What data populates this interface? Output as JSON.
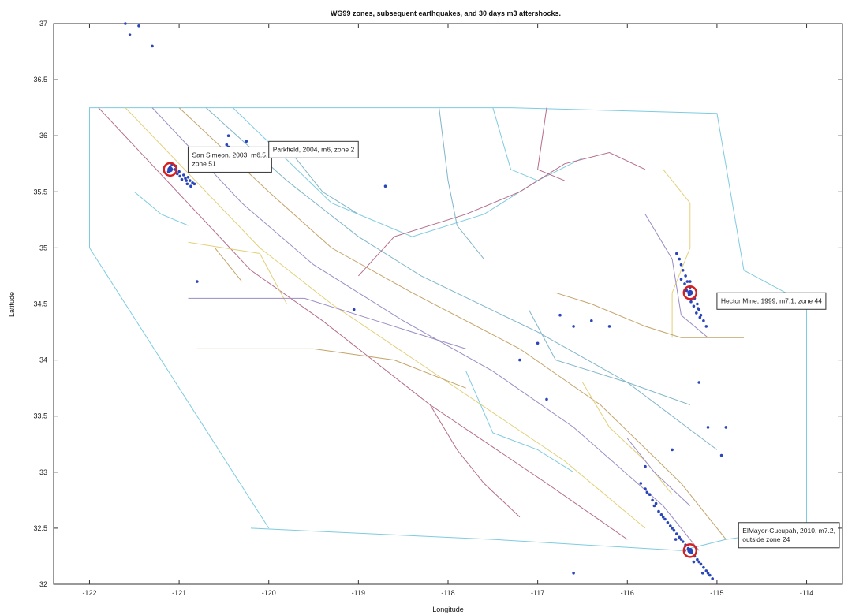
{
  "chart_data": {
    "type": "scatter",
    "title": "WG99 zones, subsequent earthquakes, and 30 days m3 aftershocks.",
    "xlabel": "Longitude",
    "ylabel": "Latitude",
    "xlim": [
      -122.4,
      -113.6
    ],
    "ylim": [
      32,
      37
    ],
    "xticks": [
      -122,
      -121,
      -120,
      -119,
      -118,
      -117,
      -116,
      -115,
      -114
    ],
    "yticks": [
      32,
      32.5,
      33,
      33.5,
      34,
      34.5,
      35,
      35.5,
      36,
      36.5,
      37
    ],
    "xtick_labels": [
      "-122",
      "-121",
      "-120",
      "-119",
      "-118",
      "-117",
      "-116",
      "-115",
      "-114"
    ],
    "ytick_labels": [
      "32",
      "32.5",
      "33",
      "33.5",
      "34",
      "34.5",
      "35",
      "35.5",
      "36",
      "36.5",
      "37"
    ],
    "grid": false,
    "colors": {
      "aftershock": "#2a46b8",
      "mainshock_ring": "#d62020",
      "zone_palette": [
        "#7ecbe0",
        "#b56b8a",
        "#e2d07a",
        "#9a8cc4",
        "#c4a36a",
        "#7fb5c9"
      ]
    },
    "annotations": [
      {
        "text_lines": [
          "San Simeon, 2003, m6.5,",
          "zone 51"
        ],
        "lon": -120.9,
        "lat": 35.9
      },
      {
        "text_lines": [
          "Parkfield, 2004, m6, zone 2"
        ],
        "lon": -120.0,
        "lat": 35.95
      },
      {
        "text_lines": [
          "Hector Mine, 1999, m7.1, zone 44"
        ],
        "lon": -115.0,
        "lat": 34.6
      },
      {
        "text_lines": [
          "ElMayor-Cucupah, 2010, m7.2,",
          "outside zone 24"
        ],
        "lon": -114.5,
        "lat": 32.55
      }
    ],
    "mainshocks": [
      {
        "name": "San Simeon",
        "lon": -121.1,
        "lat": 35.7
      },
      {
        "name": "Parkfield",
        "lon": -120.37,
        "lat": 35.82
      },
      {
        "name": "Hector Mine",
        "lon": -115.3,
        "lat": 34.6
      },
      {
        "name": "ElMayor-Cucupah",
        "lon": -115.3,
        "lat": 32.3
      }
    ],
    "aftershock_clusters": [
      {
        "name": "San Simeon",
        "points": [
          [
            -121.1,
            35.72
          ],
          [
            -121.05,
            35.7
          ],
          [
            -121.0,
            35.68
          ],
          [
            -120.95,
            35.65
          ],
          [
            -120.9,
            35.63
          ],
          [
            -120.88,
            35.6
          ],
          [
            -120.85,
            35.58
          ],
          [
            -121.02,
            35.66
          ],
          [
            -120.97,
            35.61
          ],
          [
            -121.08,
            35.74
          ],
          [
            -120.92,
            35.6
          ],
          [
            -120.87,
            35.55
          ],
          [
            -120.83,
            35.57
          ],
          [
            -121.12,
            35.68
          ],
          [
            -120.99,
            35.64
          ],
          [
            -120.93,
            35.62
          ],
          [
            -121.04,
            35.73
          ],
          [
            -120.91,
            35.57
          ]
        ]
      },
      {
        "name": "Parkfield",
        "points": [
          [
            -120.45,
            35.9
          ],
          [
            -120.4,
            35.85
          ],
          [
            -120.38,
            35.82
          ],
          [
            -120.35,
            35.8
          ],
          [
            -120.42,
            35.88
          ],
          [
            -120.33,
            35.78
          ],
          [
            -120.47,
            35.92
          ]
        ]
      },
      {
        "name": "Hector Mine",
        "points": [
          [
            -115.4,
            34.85
          ],
          [
            -115.38,
            34.8
          ],
          [
            -115.35,
            34.75
          ],
          [
            -115.33,
            34.7
          ],
          [
            -115.3,
            34.65
          ],
          [
            -115.28,
            34.6
          ],
          [
            -115.25,
            34.55
          ],
          [
            -115.22,
            34.5
          ],
          [
            -115.2,
            34.45
          ],
          [
            -115.18,
            34.4
          ],
          [
            -115.15,
            34.35
          ],
          [
            -115.12,
            34.3
          ],
          [
            -115.36,
            34.68
          ],
          [
            -115.31,
            34.58
          ],
          [
            -115.26,
            34.48
          ],
          [
            -115.42,
            34.9
          ],
          [
            -115.34,
            34.62
          ],
          [
            -115.23,
            34.42
          ],
          [
            -115.4,
            34.72
          ],
          [
            -115.29,
            34.52
          ],
          [
            -115.19,
            34.38
          ],
          [
            -115.45,
            34.95
          ],
          [
            -115.3,
            34.7
          ],
          [
            -115.21,
            34.46
          ]
        ]
      },
      {
        "name": "ElMayor-Cucupah",
        "points": [
          [
            -115.8,
            32.85
          ],
          [
            -115.75,
            32.8
          ],
          [
            -115.7,
            32.7
          ],
          [
            -115.65,
            32.65
          ],
          [
            -115.6,
            32.6
          ],
          [
            -115.55,
            32.55
          ],
          [
            -115.5,
            32.5
          ],
          [
            -115.45,
            32.45
          ],
          [
            -115.4,
            32.4
          ],
          [
            -115.35,
            32.35
          ],
          [
            -115.3,
            32.3
          ],
          [
            -115.25,
            32.25
          ],
          [
            -115.2,
            32.2
          ],
          [
            -115.15,
            32.15
          ],
          [
            -115.1,
            32.1
          ],
          [
            -115.05,
            32.05
          ],
          [
            -115.72,
            32.75
          ],
          [
            -115.62,
            32.62
          ],
          [
            -115.52,
            32.52
          ],
          [
            -115.42,
            32.42
          ],
          [
            -115.32,
            32.32
          ],
          [
            -115.22,
            32.22
          ],
          [
            -115.12,
            32.12
          ],
          [
            -115.68,
            32.72
          ],
          [
            -115.58,
            32.58
          ],
          [
            -115.48,
            32.48
          ],
          [
            -115.38,
            32.38
          ],
          [
            -115.28,
            32.28
          ],
          [
            -115.18,
            32.18
          ],
          [
            -115.08,
            32.08
          ],
          [
            -115.85,
            32.9
          ],
          [
            -115.78,
            32.82
          ],
          [
            -115.46,
            32.4
          ],
          [
            -115.36,
            32.3
          ],
          [
            -115.26,
            32.2
          ],
          [
            -115.16,
            32.1
          ]
        ]
      },
      {
        "name": "scattered",
        "points": [
          [
            -121.6,
            37.0
          ],
          [
            -121.55,
            36.9
          ],
          [
            -121.45,
            36.98
          ],
          [
            -121.3,
            36.8
          ],
          [
            -120.45,
            36.0
          ],
          [
            -120.25,
            35.95
          ],
          [
            -118.7,
            35.55
          ],
          [
            -120.8,
            34.7
          ],
          [
            -119.05,
            34.45
          ],
          [
            -116.75,
            34.4
          ],
          [
            -116.6,
            34.3
          ],
          [
            -116.4,
            34.35
          ],
          [
            -116.2,
            34.3
          ],
          [
            -117.0,
            34.15
          ],
          [
            -115.2,
            33.8
          ],
          [
            -115.1,
            33.4
          ],
          [
            -114.9,
            33.4
          ],
          [
            -114.95,
            33.15
          ],
          [
            -115.5,
            33.2
          ],
          [
            -115.8,
            33.05
          ],
          [
            -116.6,
            32.1
          ],
          [
            -117.2,
            34.0
          ],
          [
            -116.9,
            33.65
          ]
        ]
      }
    ]
  }
}
